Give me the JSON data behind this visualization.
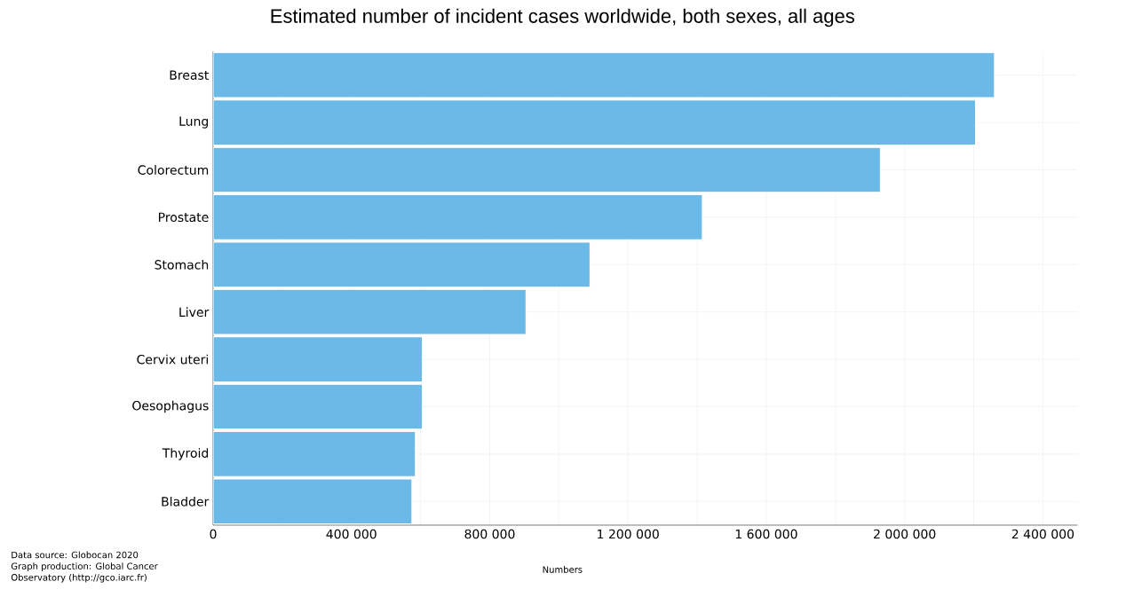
{
  "chart_data": {
    "type": "bar",
    "orientation": "horizontal",
    "title": "Estimated number of incident cases worldwide, both sexes, all ages",
    "xlabel": "Numbers",
    "categories": [
      "Breast",
      "Lung",
      "Colorectum",
      "Prostate",
      "Stomach",
      "Liver",
      "Cervix uteri",
      "Oesophagus",
      "Thyroid",
      "Bladder"
    ],
    "values": [
      2260000,
      2205000,
      1930000,
      1415000,
      1090000,
      905000,
      605000,
      605000,
      585000,
      575000
    ],
    "color": "#6bb9e6",
    "xlim": [
      0,
      2500000
    ],
    "xticks": [
      0,
      {
        "value": 200000,
        "label": null
      },
      {
        "value": 400000,
        "label": "400 000"
      },
      {
        "value": 600000,
        "label": null
      },
      {
        "value": 800000,
        "label": "800 000"
      },
      {
        "value": 1000000,
        "label": null
      },
      {
        "value": 1200000,
        "label": "1 200 000"
      },
      {
        "value": 1400000,
        "label": null
      },
      {
        "value": 1600000,
        "label": "1 600 000"
      },
      {
        "value": 1800000,
        "label": null
      },
      {
        "value": 2000000,
        "label": "2 000 000"
      },
      {
        "value": 2200000,
        "label": null
      },
      {
        "value": 2400000,
        "label": "2 400 000"
      }
    ],
    "grid": true,
    "annotations": [
      "Data source: Globocan 2020 Graph production: Global Cancer Observatory (http://gco.iarc.fr)"
    ]
  }
}
